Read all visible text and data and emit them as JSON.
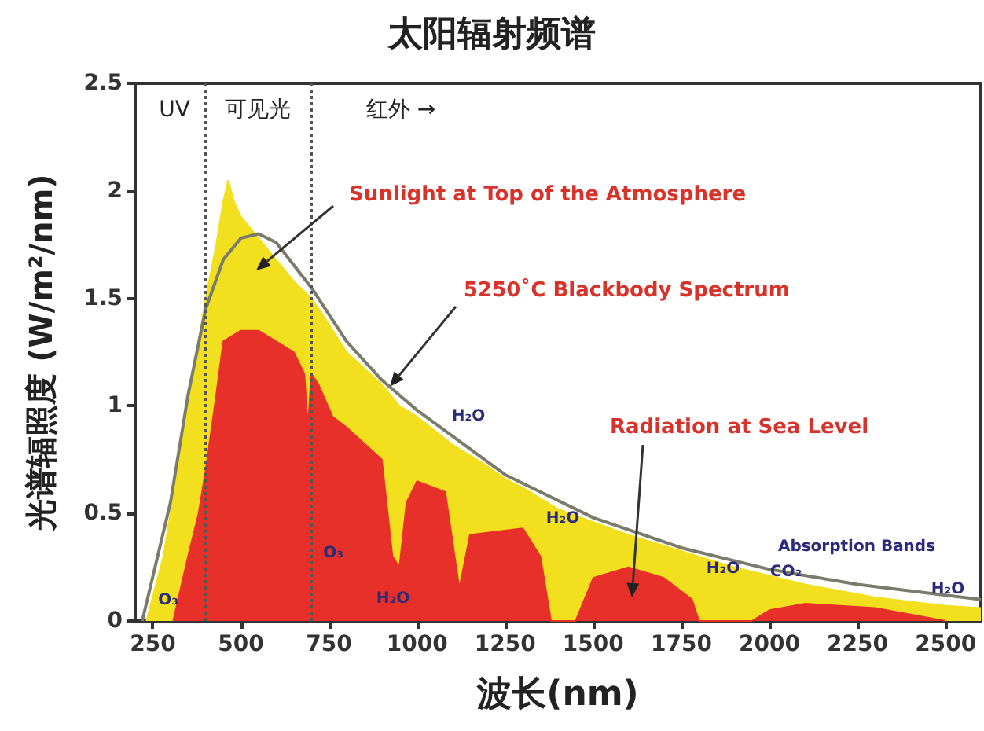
{
  "chart_data": {
    "type": "area",
    "title": "太阳辐射频谱",
    "xlabel": "波长(nm)",
    "ylabel": "光谱辐照度 (W/m²/nm)",
    "xlim": [
      200,
      2600
    ],
    "xticks": [
      250,
      500,
      750,
      1000,
      1250,
      1500,
      1750,
      2000,
      2250,
      2500
    ],
    "ylim": [
      0,
      2.5
    ],
    "yticks": [
      0,
      0.5,
      1,
      1.5,
      2,
      2.5
    ],
    "grid": false,
    "marker": "none",
    "series": [
      {
        "color": "#f2e01e",
        "x": [
          232,
          280,
          320,
          360,
          400,
          430,
          450,
          464,
          480,
          500,
          550,
          600,
          650,
          700,
          750,
          800,
          900,
          950,
          1000,
          1100,
          1200,
          1250,
          1300,
          1400,
          1500,
          1600,
          1700,
          1800,
          1900,
          2000,
          2100,
          2200,
          2300,
          2400,
          2500,
          2600
        ],
        "values": [
          0,
          0.3,
          0.7,
          1.1,
          1.5,
          1.75,
          1.95,
          2.05,
          1.95,
          1.88,
          1.78,
          1.68,
          1.58,
          1.5,
          1.38,
          1.25,
          1.1,
          1.0,
          0.95,
          0.82,
          0.72,
          0.66,
          0.62,
          0.52,
          0.46,
          0.4,
          0.35,
          0.3,
          0.25,
          0.21,
          0.17,
          0.14,
          0.11,
          0.09,
          0.07,
          0.06
        ]
      },
      {
        "color": "#e8302a",
        "x": [
          308,
          350,
          380,
          400,
          430,
          450,
          500,
          550,
          600,
          650,
          680,
          690,
          700,
          720,
          760,
          800,
          900,
          930,
          950,
          970,
          1000,
          1080,
          1120,
          1150,
          1250,
          1300,
          1350,
          1380,
          1450,
          1500,
          1600,
          1700,
          1780,
          1800,
          1950,
          2000,
          2100,
          2200,
          2300,
          2400,
          2500
        ],
        "values": [
          0,
          0.3,
          0.5,
          0.7,
          1.05,
          1.3,
          1.35,
          1.35,
          1.3,
          1.25,
          1.15,
          0.9,
          1.15,
          1.1,
          0.95,
          0.9,
          0.75,
          0.3,
          0.25,
          0.55,
          0.65,
          0.6,
          0.15,
          0.4,
          0.42,
          0.43,
          0.3,
          0,
          0,
          0.2,
          0.25,
          0.2,
          0.1,
          0,
          0,
          0.05,
          0.08,
          0.07,
          0.06,
          0.03,
          0
        ]
      },
      {
        "type": "line",
        "color": "#7b7b6b",
        "x": [
          220,
          300,
          350,
          400,
          450,
          500,
          550,
          600,
          700,
          800,
          900,
          1000,
          1250,
          1500,
          1750,
          2000,
          2250,
          2500,
          2600
        ],
        "values": [
          0,
          0.55,
          1.05,
          1.45,
          1.68,
          1.78,
          1.8,
          1.76,
          1.55,
          1.3,
          1.12,
          0.98,
          0.68,
          0.48,
          0.34,
          0.24,
          0.17,
          0.12,
          0.1
        ]
      }
    ],
    "ref_lines": [
      {
        "axis": "x",
        "value": 400,
        "label": null,
        "color": "#555555",
        "line_style": "dotted"
      },
      {
        "axis": "x",
        "value": 700,
        "label": null,
        "color": "#555555",
        "line_style": "dotted"
      }
    ],
    "annotations": [
      "Sunlight at Top of the Atmosphere",
      {
        "text": "5250˚C Blackbody Spectrum",
        "x": 923,
        "y": 1.09
      },
      "Radiation at Sea Level",
      "UV",
      "可见光",
      "红外 →",
      "O₃",
      "O₃",
      "H₂O",
      "H₂O",
      "H₂O",
      "H₂O",
      "CO₂",
      "Absorption Bands",
      "H₂O"
    ]
  }
}
